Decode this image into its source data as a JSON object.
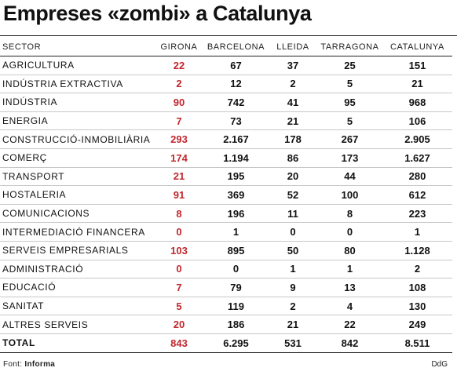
{
  "title": "Empreses «zombi» a Catalunya",
  "columns": [
    "SECTOR",
    "GIRONA",
    "BARCELONA",
    "LLEIDA",
    "TARRAGONA",
    "CATALUNYA"
  ],
  "rows": [
    {
      "sector": "AGRICULTURA",
      "values": [
        "22",
        "67",
        "37",
        "25",
        "151"
      ]
    },
    {
      "sector": "INDÚSTRIA EXTRACTIVA",
      "values": [
        "2",
        "12",
        "2",
        "5",
        "21"
      ]
    },
    {
      "sector": "INDÚSTRIA",
      "values": [
        "90",
        "742",
        "41",
        "95",
        "968"
      ]
    },
    {
      "sector": "ENERGIA",
      "values": [
        "7",
        "73",
        "21",
        "5",
        "106"
      ]
    },
    {
      "sector": "CONSTRUCCIÓ-INMOBILIÀRIA",
      "values": [
        "293",
        "2.167",
        "178",
        "267",
        "2.905"
      ]
    },
    {
      "sector": "COMERÇ",
      "values": [
        "174",
        "1.194",
        "86",
        "173",
        "1.627"
      ]
    },
    {
      "sector": "TRANSPORT",
      "values": [
        "21",
        "195",
        "20",
        "44",
        "280"
      ]
    },
    {
      "sector": "HOSTALERIA",
      "values": [
        "91",
        "369",
        "52",
        "100",
        "612"
      ]
    },
    {
      "sector": "COMUNICACIONS",
      "values": [
        "8",
        "196",
        "11",
        "8",
        "223"
      ]
    },
    {
      "sector": "INTERMEDIACIÓ FINANCERA",
      "values": [
        "0",
        "1",
        "0",
        "0",
        "1"
      ]
    },
    {
      "sector": "SERVEIS EMPRESARIALS",
      "values": [
        "103",
        "895",
        "50",
        "80",
        "1.128"
      ]
    },
    {
      "sector": "ADMINISTRACIÓ",
      "values": [
        "0",
        "0",
        "1",
        "1",
        "2"
      ]
    },
    {
      "sector": "EDUCACIÓ",
      "values": [
        "7",
        "79",
        "9",
        "13",
        "108"
      ]
    },
    {
      "sector": "SANITAT",
      "values": [
        "5",
        "119",
        "2",
        "4",
        "130"
      ]
    },
    {
      "sector": "ALTRES SERVEIS",
      "values": [
        "20",
        "186",
        "21",
        "22",
        "249"
      ]
    }
  ],
  "total": {
    "sector": "TOTAL",
    "values": [
      "843",
      "6.295",
      "531",
      "842",
      "8.511"
    ]
  },
  "footer": {
    "source_label": "Font:",
    "source_name": "Informa",
    "credit": "DdG"
  },
  "colors": {
    "girona_accent": "#c1272d"
  }
}
